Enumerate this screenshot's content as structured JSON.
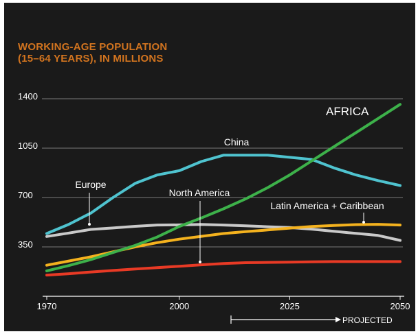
{
  "chart_data": {
    "type": "line",
    "title_lines": [
      "WORKING-AGE POPULATION",
      "(15–64 YEARS), IN MILLIONS"
    ],
    "x": [
      1970,
      1975,
      1980,
      1985,
      1990,
      1995,
      2000,
      2005,
      2010,
      2015,
      2020,
      2025,
      2030,
      2035,
      2040,
      2045,
      2050
    ],
    "xlim": [
      1970,
      2050
    ],
    "ylim": [
      0,
      1400
    ],
    "x_ticks": [
      "1970",
      "2000",
      "2025",
      "2050"
    ],
    "x_tick_values": [
      1970,
      2000,
      2025,
      2050
    ],
    "y_ticks": [
      "350",
      "700",
      "1050",
      "1400"
    ],
    "y_tick_values": [
      350,
      700,
      1050,
      1400
    ],
    "grid": true,
    "series": [
      {
        "name": "Europe",
        "color": "#c9c9c9",
        "values": [
          424,
          448,
          474,
          484,
          496,
          505,
          506,
          509,
          505,
          499,
          493,
          487,
          476,
          461,
          446,
          431,
          396
        ]
      },
      {
        "name": "China",
        "color": "#4fc3cf",
        "values": [
          445,
          510,
          590,
          700,
          800,
          860,
          890,
          955,
          1000,
          1000,
          1000,
          985,
          970,
          910,
          860,
          820,
          785
        ]
      },
      {
        "name": "North America",
        "color": "#f4b21e",
        "values": [
          220,
          250,
          280,
          315,
          350,
          380,
          405,
          425,
          445,
          458,
          470,
          483,
          495,
          502,
          508,
          510,
          505
        ]
      },
      {
        "name": "Latin America + Caribbean",
        "color": "#e83a25",
        "values": [
          150,
          160,
          172,
          183,
          193,
          203,
          213,
          223,
          232,
          238,
          240,
          242,
          244,
          246,
          246,
          246,
          246
        ]
      },
      {
        "name": "AFRICA",
        "color": "#3db14a",
        "values": [
          180,
          218,
          260,
          310,
          360,
          420,
          495,
          555,
          620,
          690,
          770,
          860,
          960,
          1060,
          1160,
          1260,
          1360
        ]
      }
    ],
    "annotations": [
      "PROJECTED"
    ]
  }
}
